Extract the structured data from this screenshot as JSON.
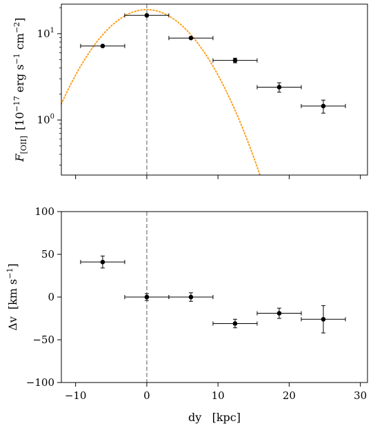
{
  "chart_data": [
    {
      "type": "scatter",
      "panel": "top",
      "ylabel_symbol": "F",
      "ylabel_subscript": "[OII]",
      "ylabel_units": "[10",
      "ylabel_units_exp": "−17",
      "ylabel_units_rest": " erg s",
      "ylabel_units_exp2": "−1",
      "ylabel_units_rest2": " cm",
      "ylabel_units_exp3": "−2",
      "ylabel_units_close": "]",
      "yscale": "log",
      "xlim": [
        -12,
        31
      ],
      "ylim": [
        0.23,
        22
      ],
      "y_ticks": [
        {
          "value": 1,
          "base": "10",
          "exp": "0"
        },
        {
          "value": 10,
          "base": "10",
          "exp": "1"
        }
      ],
      "vline_x": 0,
      "vline_color": "#808080",
      "series": [
        {
          "marker_color": "#000000",
          "points": [
            {
              "x": -6.2,
              "y": 7.2,
              "xerr": 3.1,
              "yerr": 0
            },
            {
              "x": 0.0,
              "y": 16.3,
              "xerr": 3.1,
              "yerr": 0
            },
            {
              "x": 6.2,
              "y": 8.9,
              "xerr": 3.1,
              "yerr": 0
            },
            {
              "x": 12.4,
              "y": 4.9,
              "xerr": 3.1,
              "yerr": 0.3
            },
            {
              "x": 18.6,
              "y": 2.4,
              "xerr": 3.1,
              "yerr": 0.3
            },
            {
              "x": 24.8,
              "y": 1.45,
              "xerr": 3.1,
              "yerr": 0.25
            }
          ]
        }
      ],
      "curve": {
        "type": "gaussian",
        "amplitude": 19.0,
        "center": 0.0,
        "sigma": 5.35,
        "color": "#ff9f1c"
      }
    },
    {
      "type": "scatter",
      "panel": "bottom",
      "ylabel_symbol": "Δv",
      "ylabel_units": "[km s",
      "ylabel_units_exp": "−1",
      "ylabel_units_close": "]",
      "xlabel": "dy   [kpc]",
      "xlim": [
        -12,
        31
      ],
      "ylim": [
        -100,
        100
      ],
      "x_ticks": [
        -10,
        0,
        10,
        20,
        30
      ],
      "x_tick_labels": [
        "−10",
        "0",
        "10",
        "20",
        "30"
      ],
      "y_ticks": [
        -100,
        -50,
        0,
        50,
        100
      ],
      "y_tick_labels": [
        "−100",
        "−50",
        "0",
        "50",
        "100"
      ],
      "vline_x": 0,
      "vline_color": "#808080",
      "series": [
        {
          "marker_color": "#000000",
          "points": [
            {
              "x": -6.2,
              "y": 41,
              "xerr": 3.1,
              "yerr": 7
            },
            {
              "x": 0.0,
              "y": 0,
              "xerr": 3.1,
              "yerr": 4
            },
            {
              "x": 6.2,
              "y": 0,
              "xerr": 3.1,
              "yerr": 5
            },
            {
              "x": 12.4,
              "y": -31,
              "xerr": 3.1,
              "yerr": 5
            },
            {
              "x": 18.6,
              "y": -19,
              "xerr": 3.1,
              "yerr": 6
            },
            {
              "x": 24.8,
              "y": -26,
              "xerr": 3.1,
              "yerr": 16
            }
          ]
        }
      ]
    }
  ]
}
